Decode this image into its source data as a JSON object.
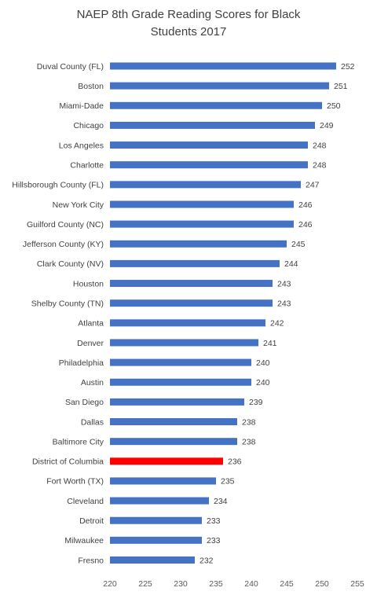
{
  "chart_data": {
    "type": "bar",
    "orientation": "horizontal",
    "title_lines": [
      "NAEP 8th Grade Reading Scores for Black",
      "Students 2017"
    ],
    "categories": [
      "Duval County (FL)",
      "Boston",
      "Miami-Dade",
      "Chicago",
      "Los Angeles",
      "Charlotte",
      "Hillsborough County (FL)",
      "New York City",
      "Guilford County (NC)",
      "Jefferson County (KY)",
      "Clark County (NV)",
      "Houston",
      "Shelby County (TN)",
      "Atlanta",
      "Denver",
      "Philadelphia",
      "Austin",
      "San Diego",
      "Dallas",
      "Baltimore City",
      "District of Columbia",
      "Fort Worth (TX)",
      "Cleveland",
      "Detroit",
      "Milwaukee",
      "Fresno"
    ],
    "values": [
      252,
      251,
      250,
      249,
      248,
      248,
      247,
      246,
      246,
      245,
      244,
      243,
      243,
      242,
      241,
      240,
      240,
      239,
      238,
      238,
      236,
      235,
      234,
      233,
      233,
      232
    ],
    "value_labels": [
      "252",
      "251",
      "250",
      "249",
      "248",
      "248",
      "247",
      "246",
      "246",
      "245",
      "244",
      "243",
      "243",
      "242",
      "241",
      "240",
      "240",
      "239",
      "238",
      "238",
      "236",
      "235",
      "234",
      "233",
      "233",
      "232"
    ],
    "xlim": [
      220,
      255
    ],
    "x_ticks": [
      "220",
      "225",
      "230",
      "235",
      "240",
      "245",
      "250",
      "255"
    ],
    "grid": false,
    "legend": "none",
    "colors": {
      "default": "#4472C4",
      "highlight": "#FF0000",
      "text": "#404040"
    },
    "highlight_category": "District of Columbia"
  }
}
